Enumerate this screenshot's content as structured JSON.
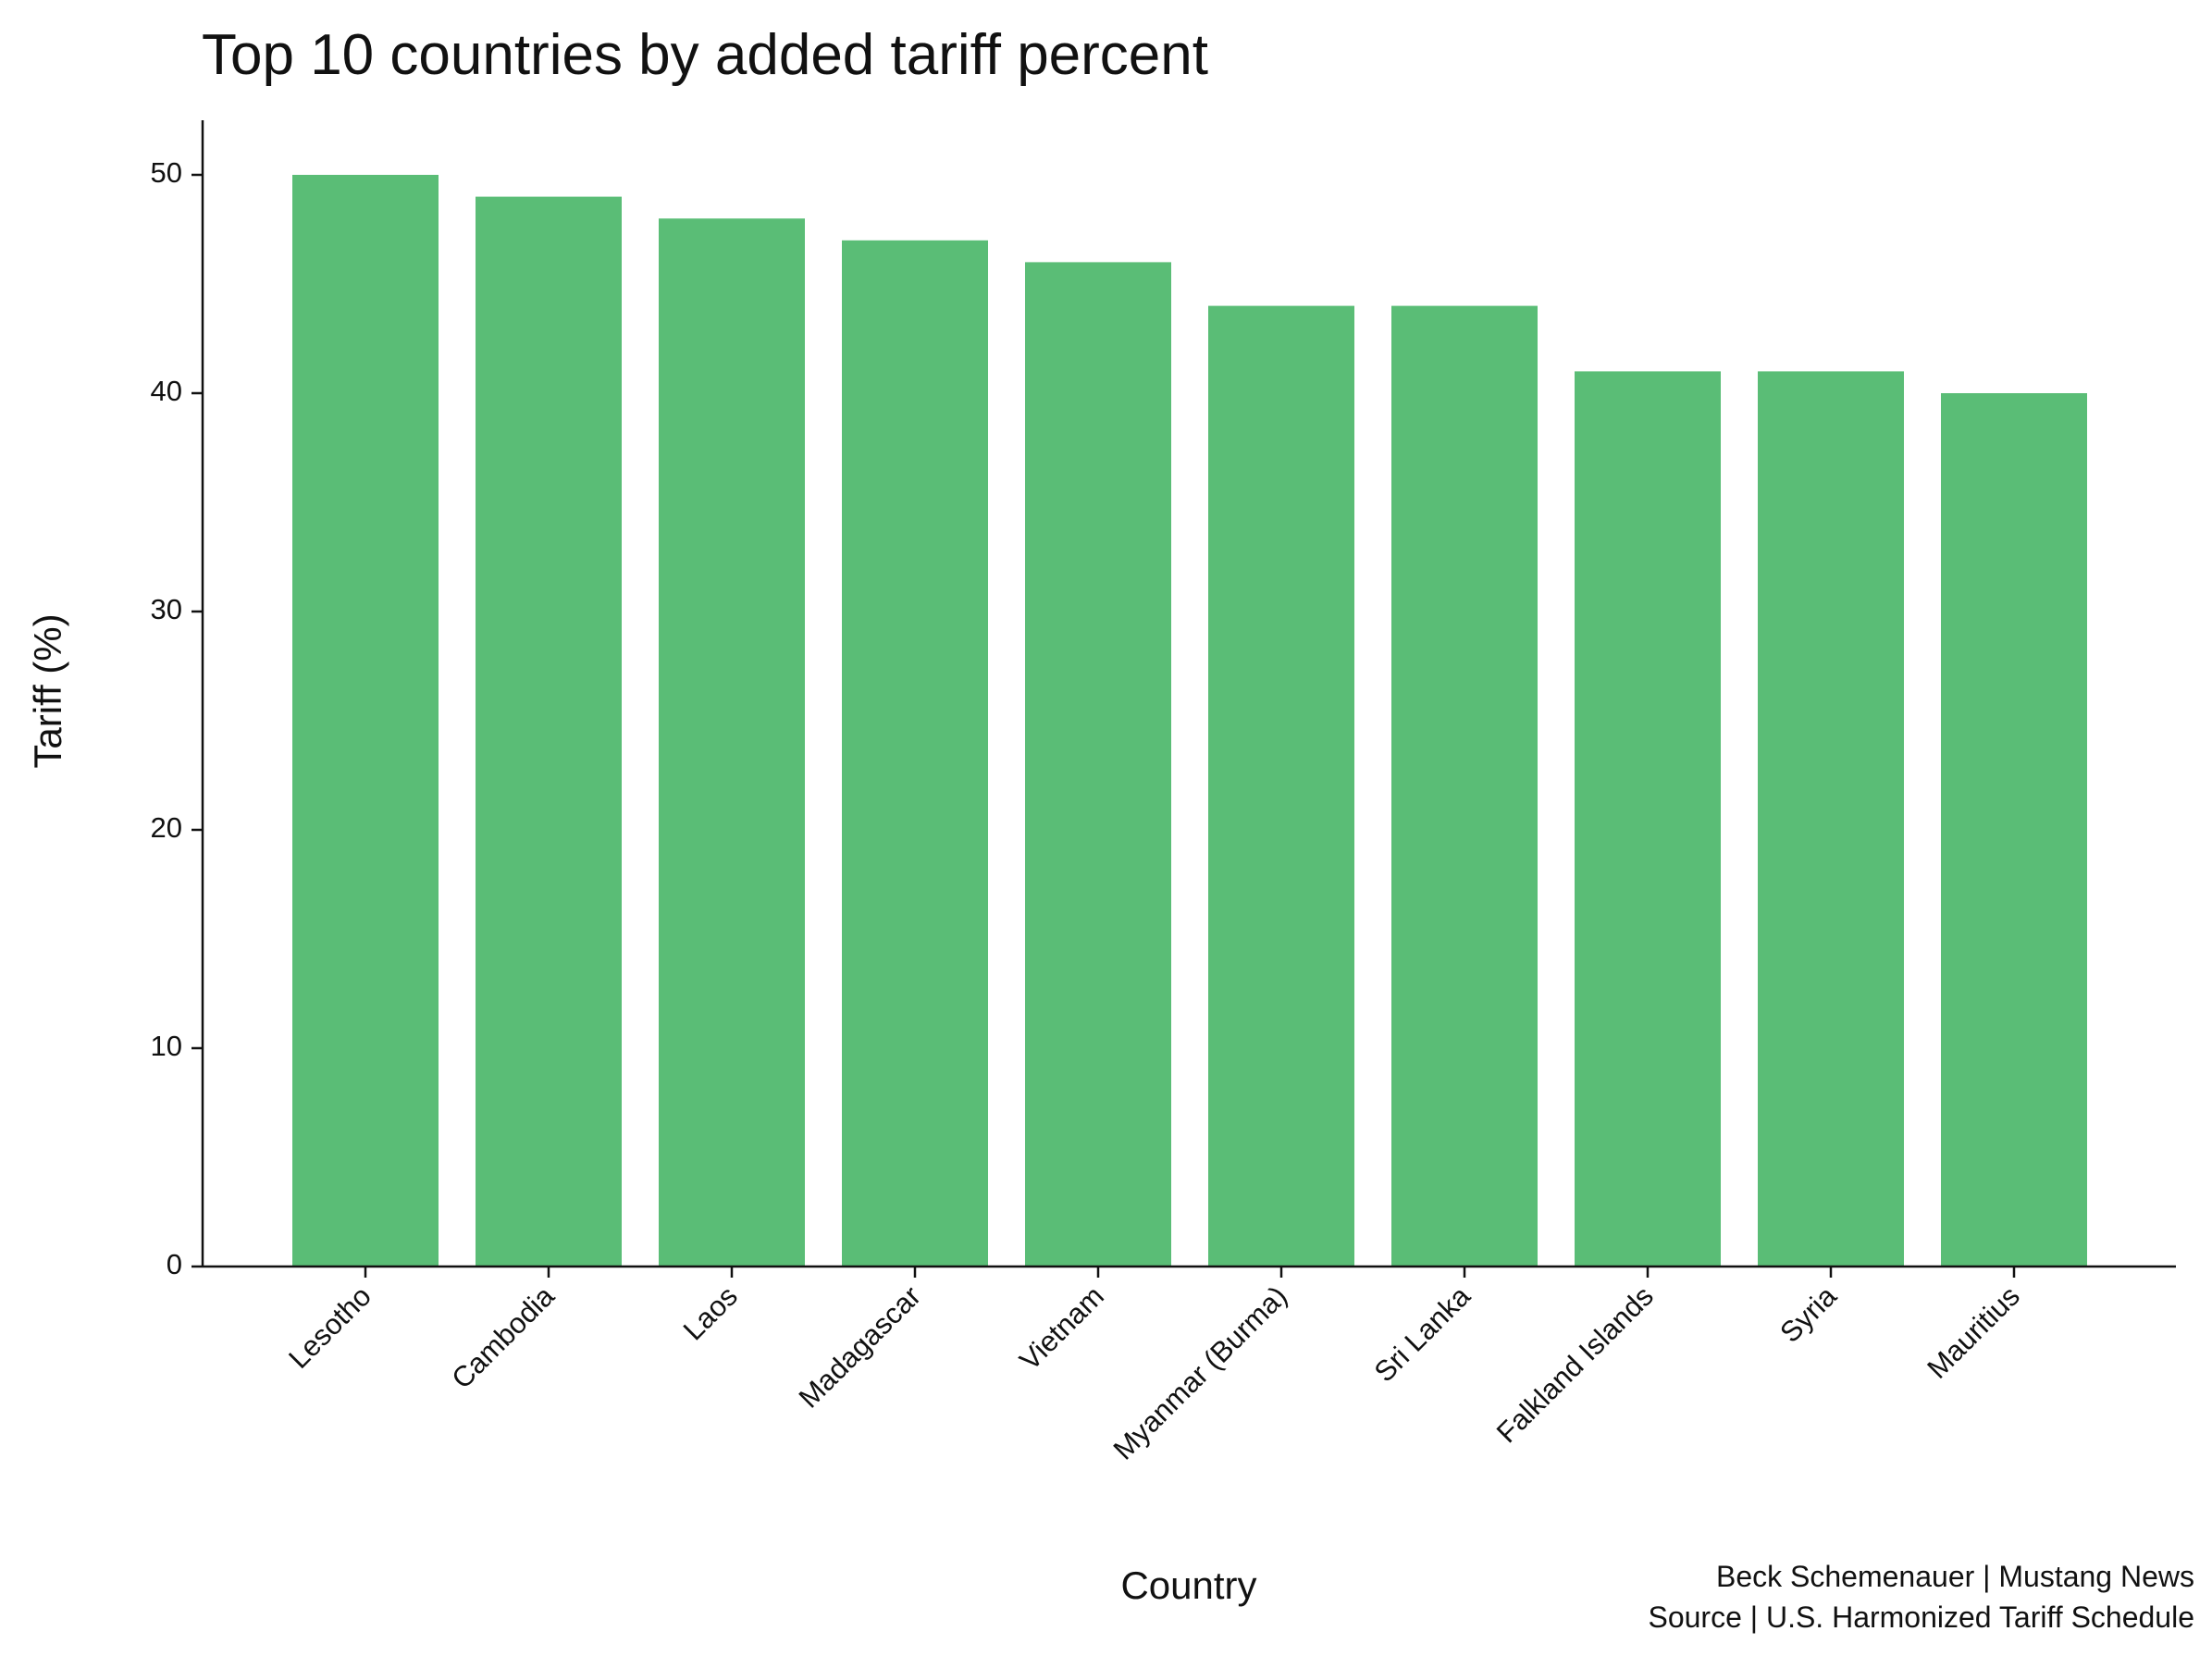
{
  "chart_data": {
    "type": "bar",
    "title": "Top 10 countries by added tariff percent",
    "xlabel": "Country",
    "ylabel": "Tariff (%)",
    "categories": [
      "Lesotho",
      "Cambodia",
      "Laos",
      "Madagascar",
      "Vietnam",
      "Myanmar (Burma)",
      "Sri Lanka",
      "Falkland Islands",
      "Syria",
      "Mauritius"
    ],
    "values": [
      50,
      49,
      48,
      47,
      46,
      44,
      44,
      41,
      41,
      40
    ],
    "ylim": [
      0,
      52.5
    ],
    "yticks": [
      0,
      10,
      20,
      30,
      40,
      50
    ],
    "bar_color": "#5abd76",
    "grid": false,
    "credits": [
      "Beck Schemenauer | Mustang News",
      "Source | U.S. Harmonized Tariff Schedule"
    ]
  }
}
